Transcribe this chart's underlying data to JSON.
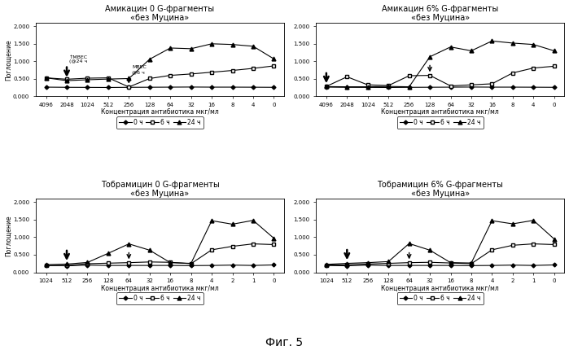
{
  "panels": [
    {
      "title": "Амикацин 0 G-фрагменты\n«без Муцина»",
      "x_labels": [
        "4096",
        "2048",
        "1024",
        "512",
        "256",
        "128",
        "64",
        "32",
        "16",
        "8",
        "4",
        "0"
      ],
      "series_0h": [
        0.265,
        0.26,
        0.258,
        0.255,
        0.26,
        0.262,
        0.265,
        0.268,
        0.265,
        0.265,
        0.263,
        0.26
      ],
      "series_6h": [
        0.53,
        0.49,
        0.52,
        0.53,
        0.27,
        0.51,
        0.6,
        0.64,
        0.69,
        0.74,
        0.8,
        0.87
      ],
      "series_24h": [
        0.53,
        0.45,
        0.475,
        0.495,
        0.51,
        1.06,
        1.38,
        1.36,
        1.5,
        1.48,
        1.43,
        1.07
      ],
      "arrow_black_idx": 1,
      "arrow_white_idx": 4,
      "show_mbec": true,
      "ylim": [
        0.0,
        2.1
      ],
      "yticks": [
        0.0,
        0.5,
        1.0,
        1.5,
        2.0
      ]
    },
    {
      "title": "Амикацин 6% G-фрагменты\n«без Муцина»",
      "x_labels": [
        "4096",
        "2048",
        "1024",
        "512",
        "256",
        "128",
        "64",
        "32",
        "16",
        "8",
        "4",
        "0"
      ],
      "series_0h": [
        0.265,
        0.26,
        0.258,
        0.255,
        0.26,
        0.262,
        0.265,
        0.268,
        0.265,
        0.265,
        0.263,
        0.26
      ],
      "series_6h": [
        0.285,
        0.56,
        0.33,
        0.31,
        0.59,
        0.6,
        0.3,
        0.33,
        0.36,
        0.67,
        0.81,
        0.86
      ],
      "series_24h": [
        0.28,
        0.275,
        0.275,
        0.285,
        0.275,
        1.13,
        1.41,
        1.3,
        1.58,
        1.52,
        1.48,
        1.3
      ],
      "arrow_black_idx": 0,
      "arrow_white_idx": 5,
      "show_mbec": false,
      "ylim": [
        0.0,
        2.1
      ],
      "yticks": [
        0.0,
        0.5,
        1.0,
        1.5,
        2.0
      ]
    },
    {
      "title": "Тобрамицин 0 G-фрагменты\n«без Муцина»",
      "x_labels": [
        "1024",
        "512",
        "256",
        "128",
        "64",
        "32",
        "16",
        "8",
        "4",
        "2",
        "1",
        "0"
      ],
      "series_0h": [
        0.195,
        0.185,
        0.205,
        0.195,
        0.195,
        0.195,
        0.195,
        0.19,
        0.195,
        0.205,
        0.195,
        0.21
      ],
      "series_6h": [
        0.195,
        0.195,
        0.245,
        0.26,
        0.275,
        0.295,
        0.285,
        0.245,
        0.64,
        0.74,
        0.81,
        0.79
      ],
      "series_24h": [
        0.215,
        0.235,
        0.28,
        0.54,
        0.81,
        0.63,
        0.275,
        0.255,
        1.47,
        1.37,
        1.48,
        0.97
      ],
      "arrow_black_idx": 1,
      "arrow_white_idx": 4,
      "show_mbec": false,
      "ylim": [
        0.0,
        2.1
      ],
      "yticks": [
        0.0,
        0.5,
        1.0,
        1.5,
        2.0
      ]
    },
    {
      "title": "Тобрамицин 6% G-фрагменты\n«без Муцина»",
      "x_labels": [
        "1024",
        "512",
        "256",
        "128",
        "64",
        "32",
        "16",
        "8",
        "4",
        "2",
        "1",
        "0"
      ],
      "series_0h": [
        0.195,
        0.185,
        0.205,
        0.195,
        0.195,
        0.195,
        0.195,
        0.19,
        0.195,
        0.205,
        0.195,
        0.21
      ],
      "series_6h": [
        0.205,
        0.215,
        0.235,
        0.255,
        0.275,
        0.285,
        0.265,
        0.245,
        0.64,
        0.77,
        0.81,
        0.79
      ],
      "series_24h": [
        0.225,
        0.255,
        0.275,
        0.305,
        0.82,
        0.63,
        0.275,
        0.265,
        1.47,
        1.38,
        1.48,
        0.95
      ],
      "arrow_black_idx": 1,
      "arrow_white_idx": 4,
      "show_mbec": false,
      "ylim": [
        0.0,
        2.1
      ],
      "yticks": [
        0.0,
        0.5,
        1.0,
        1.5,
        2.0
      ]
    }
  ],
  "ylabel": "Поглощение",
  "xlabel": "Концентрация антибиотика мкг/мл",
  "fig_label": "Фиг. 5",
  "mbec24_text": "↑МВЕС\n(@24 ч",
  "mbec6_text": "МВЕС\n@6 ч"
}
